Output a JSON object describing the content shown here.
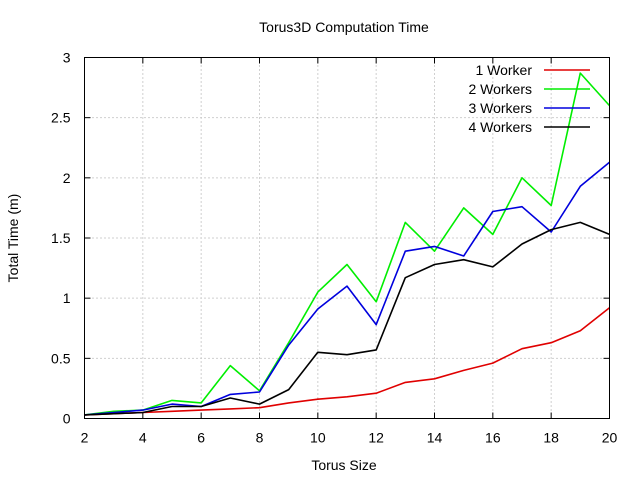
{
  "chart_data": {
    "type": "line",
    "title": "Torus3D Computation Time",
    "xlabel": "Torus Size",
    "ylabel": "Total Time (m)",
    "xlim": [
      2,
      20
    ],
    "ylim": [
      0,
      3
    ],
    "grid": true,
    "legend_position": "top-right",
    "xticks": [
      2,
      4,
      6,
      8,
      10,
      12,
      14,
      16,
      18,
      20
    ],
    "yticks": [
      0,
      0.5,
      1,
      1.5,
      2,
      2.5,
      3
    ],
    "x": [
      2,
      3,
      4,
      5,
      6,
      7,
      8,
      9,
      10,
      11,
      12,
      13,
      14,
      15,
      16,
      17,
      18,
      19,
      20
    ],
    "series": [
      {
        "name": "1 Worker",
        "color": "#e00000",
        "values": [
          0.03,
          0.04,
          0.05,
          0.06,
          0.07,
          0.08,
          0.09,
          0.13,
          0.16,
          0.18,
          0.21,
          0.3,
          0.33,
          0.4,
          0.46,
          0.58,
          0.63,
          0.73,
          0.92
        ]
      },
      {
        "name": "2 Workers",
        "color": "#00ee00",
        "values": [
          0.03,
          0.06,
          0.07,
          0.15,
          0.13,
          0.44,
          0.23,
          0.63,
          1.05,
          1.28,
          0.97,
          1.63,
          1.39,
          1.75,
          1.53,
          2.0,
          1.77,
          2.87,
          2.6
        ]
      },
      {
        "name": "3 Workers",
        "color": "#0000dd",
        "values": [
          0.03,
          0.05,
          0.07,
          0.12,
          0.1,
          0.2,
          0.22,
          0.61,
          0.91,
          1.1,
          0.78,
          1.39,
          1.43,
          1.35,
          1.72,
          1.76,
          1.55,
          1.93,
          2.13
        ]
      },
      {
        "name": "4 Workers",
        "color": "#000000",
        "values": [
          0.03,
          0.04,
          0.05,
          0.1,
          0.1,
          0.17,
          0.12,
          0.24,
          0.55,
          0.53,
          0.57,
          1.17,
          1.28,
          1.32,
          1.26,
          1.45,
          1.57,
          1.63,
          1.53
        ]
      }
    ]
  }
}
